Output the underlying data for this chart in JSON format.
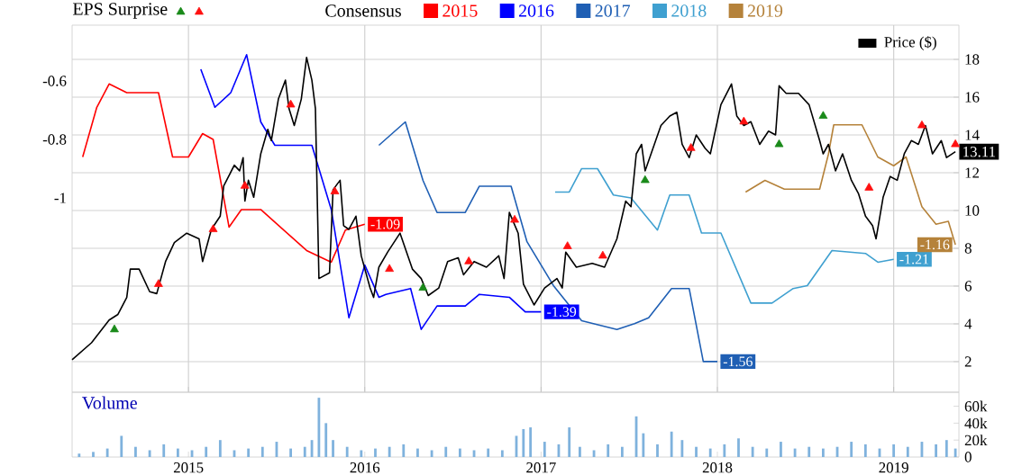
{
  "chart_data": [
    {
      "type": "line",
      "ylabel": "EPS Surprise",
      "legend_title": "Consensus",
      "legend": "top",
      "grid": true,
      "tick_labels": "y",
      "xlim": [
        2014.34,
        2019.37
      ],
      "xticks": [
        2015,
        2016,
        2017,
        2018,
        2019
      ],
      "ylim": [
        -1.665,
        -0.409
      ],
      "yticks": [
        -0.6,
        -0.8,
        -1
      ],
      "y2lim": [
        0.38,
        19.81
      ],
      "y2ticks": [
        2,
        4,
        6,
        8,
        10,
        12,
        14,
        16,
        18
      ],
      "series": [
        {
          "name": "2015",
          "type": "line",
          "color": "#ff0000",
          "x": [
            2014.4,
            2014.48,
            2014.55,
            2014.65,
            2014.83,
            2014.91,
            2015.0,
            2015.08,
            2015.14,
            2015.23,
            2015.3,
            2015.41,
            2015.67,
            2015.81,
            2015.89,
            2016.0
          ],
          "values": [
            -0.86,
            -0.69,
            -0.61,
            -0.64,
            -0.64,
            -0.86,
            -0.86,
            -0.78,
            -0.8,
            -1.1,
            -1.04,
            -1.04,
            -1.18,
            -1.22,
            -1.11,
            -1.09
          ],
          "value_labels": [
            null,
            null,
            null,
            null,
            null,
            null,
            null,
            null,
            null,
            null,
            null,
            null,
            null,
            null,
            null,
            "-1.09"
          ]
        },
        {
          "name": "2016",
          "type": "line",
          "color": "#0000ff",
          "x": [
            2015.07,
            2015.15,
            2015.24,
            2015.33,
            2015.41,
            2015.49,
            2015.7,
            2015.81,
            2015.91,
            2016.0,
            2016.08,
            2016.12,
            2016.26,
            2016.32,
            2016.41,
            2016.57,
            2016.65,
            2016.82,
            2016.91,
            2017.0
          ],
          "values": [
            -0.56,
            -0.69,
            -0.64,
            -0.51,
            -0.74,
            -0.82,
            -0.82,
            -1.04,
            -1.41,
            -1.23,
            -1.34,
            -1.33,
            -1.31,
            -1.45,
            -1.37,
            -1.37,
            -1.33,
            -1.34,
            -1.39,
            -1.39
          ],
          "value_labels": [
            null,
            null,
            null,
            null,
            null,
            null,
            null,
            null,
            null,
            null,
            null,
            null,
            null,
            null,
            null,
            null,
            null,
            null,
            null,
            "-1.39"
          ]
        },
        {
          "name": "2017",
          "type": "line",
          "color": "#1f5fb4",
          "x": [
            2016.08,
            2016.23,
            2016.33,
            2016.41,
            2016.57,
            2016.65,
            2016.83,
            2016.92,
            2017.07,
            2017.23,
            2017.43,
            2017.53,
            2017.61,
            2017.74,
            2017.84,
            2017.92,
            2018.0
          ],
          "values": [
            -0.82,
            -0.74,
            -0.94,
            -1.05,
            -1.05,
            -0.96,
            -0.96,
            -1.15,
            -1.3,
            -1.42,
            -1.45,
            -1.43,
            -1.41,
            -1.31,
            -1.31,
            -1.56,
            -1.56
          ],
          "value_labels": [
            null,
            null,
            null,
            null,
            null,
            null,
            null,
            null,
            null,
            null,
            null,
            null,
            null,
            null,
            null,
            null,
            "-1.56"
          ]
        },
        {
          "name": "2018",
          "type": "line",
          "color": "#3fa0d0",
          "x": [
            2017.08,
            2017.16,
            2017.23,
            2017.32,
            2017.41,
            2017.51,
            2017.66,
            2017.73,
            2017.84,
            2017.91,
            2018.02,
            2018.19,
            2018.31,
            2018.43,
            2018.51,
            2018.65,
            2018.84,
            2018.91,
            2019.0
          ],
          "values": [
            -0.98,
            -0.98,
            -0.9,
            -0.9,
            -0.99,
            -1.0,
            -1.11,
            -0.99,
            -0.99,
            -1.12,
            -1.12,
            -1.36,
            -1.36,
            -1.31,
            -1.3,
            -1.18,
            -1.19,
            -1.22,
            -1.21
          ],
          "value_labels": [
            null,
            null,
            null,
            null,
            null,
            null,
            null,
            null,
            null,
            null,
            null,
            null,
            null,
            null,
            null,
            null,
            null,
            null,
            "-1.21"
          ]
        },
        {
          "name": "2019",
          "type": "line",
          "color": "#b5823a",
          "x": [
            2018.16,
            2018.27,
            2018.38,
            2018.58,
            2018.63,
            2018.66,
            2018.82,
            2018.91,
            2019.0,
            2019.07,
            2019.16,
            2019.24,
            2019.31,
            2019.35
          ],
          "values": [
            -0.98,
            -0.94,
            -0.97,
            -0.97,
            -0.85,
            -0.75,
            -0.75,
            -0.86,
            -0.89,
            -0.86,
            -1.03,
            -1.09,
            -1.08,
            -1.16
          ],
          "value_labels": [
            null,
            null,
            null,
            null,
            null,
            null,
            null,
            null,
            null,
            null,
            null,
            null,
            null,
            "-1.16"
          ]
        },
        {
          "name": "Price ($)",
          "type": "line",
          "axis": "y2",
          "color": "#000000",
          "x": [
            2014.34,
            2014.45,
            2014.55,
            2014.6,
            2014.65,
            2014.67,
            2014.72,
            2014.78,
            2014.82,
            2014.87,
            2014.92,
            2014.99,
            2015.06,
            2015.08,
            2015.13,
            2015.18,
            2015.2,
            2015.26,
            2015.29,
            2015.31,
            2015.32,
            2015.34,
            2015.37,
            2015.41,
            2015.45,
            2015.47,
            2015.51,
            2015.55,
            2015.57,
            2015.6,
            2015.64,
            2015.67,
            2015.7,
            2015.72,
            2015.74,
            2015.8,
            2015.82,
            2015.86,
            2015.88,
            2015.91,
            2015.95,
            2015.98,
            2016.03,
            2016.05,
            2016.08,
            2016.13,
            2016.2,
            2016.27,
            2016.32,
            2016.36,
            2016.42,
            2016.47,
            2016.53,
            2016.56,
            2016.62,
            2016.69,
            2016.76,
            2016.79,
            2016.82,
            2016.87,
            2016.9,
            2016.96,
            2017.02,
            2017.09,
            2017.12,
            2017.14,
            2017.2,
            2017.29,
            2017.36,
            2017.43,
            2017.48,
            2017.51,
            2017.54,
            2017.57,
            2017.59,
            2017.65,
            2017.68,
            2017.73,
            2017.77,
            2017.8,
            2017.84,
            2017.88,
            2017.93,
            2017.96,
            2018.02,
            2018.08,
            2018.11,
            2018.15,
            2018.19,
            2018.24,
            2018.29,
            2018.33,
            2018.35,
            2018.39,
            2018.46,
            2018.52,
            2018.58,
            2018.6,
            2018.63,
            2018.67,
            2018.71,
            2018.76,
            2018.8,
            2018.84,
            2018.88,
            2018.9,
            2018.94,
            2018.98,
            2019.02,
            2019.06,
            2019.1,
            2019.14,
            2019.18,
            2019.22,
            2019.27,
            2019.3,
            2019.35
          ],
          "values": [
            2.1,
            3.0,
            4.2,
            4.5,
            5.4,
            6.9,
            6.9,
            5.7,
            5.6,
            7.3,
            8.3,
            8.8,
            8.5,
            7.3,
            9.0,
            9.7,
            11.3,
            12.4,
            12.1,
            12.8,
            10.5,
            11.6,
            10.7,
            13.0,
            14.3,
            13.7,
            15.9,
            16.9,
            15.4,
            14.5,
            15.9,
            18.1,
            16.9,
            15.4,
            6.4,
            6.7,
            11.1,
            11.6,
            9.2,
            9.0,
            9.7,
            7.6,
            5.9,
            5.4,
            7.0,
            7.8,
            8.8,
            6.9,
            6.4,
            5.5,
            5.9,
            7.3,
            7.5,
            6.6,
            7.3,
            7.0,
            7.6,
            6.4,
            9.9,
            8.8,
            6.1,
            5.0,
            5.9,
            6.4,
            5.9,
            7.8,
            7.0,
            7.2,
            7.0,
            8.5,
            10.5,
            10.2,
            13.0,
            13.5,
            12.1,
            13.7,
            14.5,
            15.0,
            15.2,
            13.5,
            12.8,
            14.0,
            13.3,
            13.0,
            15.6,
            16.7,
            15.0,
            14.5,
            14.7,
            13.5,
            14.2,
            14.0,
            16.6,
            16.2,
            16.2,
            15.6,
            13.7,
            13.0,
            13.5,
            12.1,
            13.0,
            11.6,
            10.9,
            9.7,
            9.2,
            8.5,
            10.7,
            11.8,
            11.6,
            13.0,
            13.7,
            13.5,
            14.5,
            13.0,
            13.7,
            12.8,
            13.11
          ],
          "value_labels": [
            null,
            null,
            null,
            null,
            null,
            null,
            null,
            null,
            null,
            null,
            null,
            null,
            null,
            null,
            null,
            null,
            null,
            null,
            null,
            null,
            null,
            null,
            null,
            null,
            null,
            null,
            null,
            null,
            null,
            null,
            null,
            null,
            null,
            null,
            null,
            null,
            null,
            null,
            null,
            null,
            null,
            null,
            null,
            null,
            null,
            null,
            null,
            null,
            null,
            null,
            null,
            null,
            null,
            null,
            null,
            null,
            null,
            null,
            null,
            null,
            null,
            null,
            null,
            null,
            null,
            null,
            null,
            null,
            null,
            null,
            null,
            null,
            null,
            null,
            null,
            null,
            null,
            null,
            null,
            null,
            null,
            null,
            null,
            null,
            null,
            null,
            null,
            null,
            null,
            null,
            null,
            null,
            null,
            null,
            null,
            null,
            null,
            null,
            null,
            null,
            null,
            null,
            null,
            null,
            null,
            null,
            null,
            null,
            null,
            null,
            null,
            null,
            null,
            null,
            null,
            null,
            "13.11"
          ]
        },
        {
          "type": "scatter",
          "axis": "y2",
          "color": "#1a8a1a",
          "marker": "triangle",
          "x": [
            2014.58,
            2016.33,
            2017.59,
            2018.35,
            2018.6
          ],
          "values": [
            3.7,
            5.9,
            11.6,
            13.5,
            15.0
          ]
        },
        {
          "type": "scatter",
          "axis": "y2",
          "color": "#ff1010",
          "marker": "triangle",
          "x": [
            2014.83,
            2015.14,
            2015.32,
            2015.58,
            2015.83,
            2016.14,
            2016.59,
            2016.85,
            2017.15,
            2017.35,
            2017.85,
            2018.15,
            2018.86,
            2019.16,
            2019.35
          ],
          "values": [
            6.1,
            9.0,
            11.3,
            15.6,
            11.0,
            6.9,
            7.3,
            9.5,
            8.1,
            7.6,
            13.3,
            14.7,
            11.2,
            14.5,
            13.5
          ]
        }
      ]
    },
    {
      "type": "bar",
      "title": "Volume",
      "xlim": [
        2014.34,
        2019.37
      ],
      "xticks": [
        2015,
        2016,
        2017,
        2018,
        2019
      ],
      "y2lim": [
        0,
        76500
      ],
      "y2ticks": [
        0,
        {
          "value": 20000,
          "label": "20k"
        },
        {
          "value": 40000,
          "label": "40k"
        },
        {
          "value": 60000,
          "label": "60k"
        }
      ],
      "series": [
        {
          "axis": "y2",
          "color": "#7fb2dd",
          "x": [
            2014.38,
            2014.46,
            2014.54,
            2014.62,
            2014.7,
            2014.78,
            2014.86,
            2014.94,
            2015.02,
            2015.1,
            2015.18,
            2015.26,
            2015.34,
            2015.42,
            2015.5,
            2015.58,
            2015.66,
            2015.7,
            2015.74,
            2015.78,
            2015.82,
            2015.9,
            2015.98,
            2016.06,
            2016.14,
            2016.22,
            2016.3,
            2016.38,
            2016.46,
            2016.54,
            2016.62,
            2016.7,
            2016.78,
            2016.86,
            2016.9,
            2016.94,
            2017.02,
            2017.1,
            2017.16,
            2017.22,
            2017.3,
            2017.38,
            2017.46,
            2017.54,
            2017.58,
            2017.66,
            2017.74,
            2017.8,
            2017.88,
            2017.96,
            2018.04,
            2018.12,
            2018.2,
            2018.28,
            2018.36,
            2018.44,
            2018.52,
            2018.6,
            2018.68,
            2018.76,
            2018.84,
            2018.92,
            2019.0,
            2019.08,
            2019.16,
            2019.24,
            2019.3,
            2019.35
          ],
          "values": [
            4000,
            6000,
            10000,
            25000,
            12000,
            8000,
            15000,
            10000,
            8000,
            12000,
            20000,
            8000,
            10000,
            12000,
            18000,
            10000,
            12000,
            20000,
            70000,
            40000,
            20000,
            12000,
            8000,
            10000,
            12000,
            15000,
            10000,
            8000,
            12000,
            10000,
            8000,
            10000,
            8000,
            25000,
            33000,
            35000,
            18000,
            15000,
            35000,
            12000,
            8000,
            15000,
            12000,
            48000,
            28000,
            15000,
            30000,
            20000,
            12000,
            10000,
            15000,
            22000,
            12000,
            10000,
            18000,
            10000,
            12000,
            10000,
            12000,
            18000,
            15000,
            10000,
            15000,
            12000,
            18000,
            15000,
            20000,
            10000
          ]
        }
      ]
    }
  ]
}
